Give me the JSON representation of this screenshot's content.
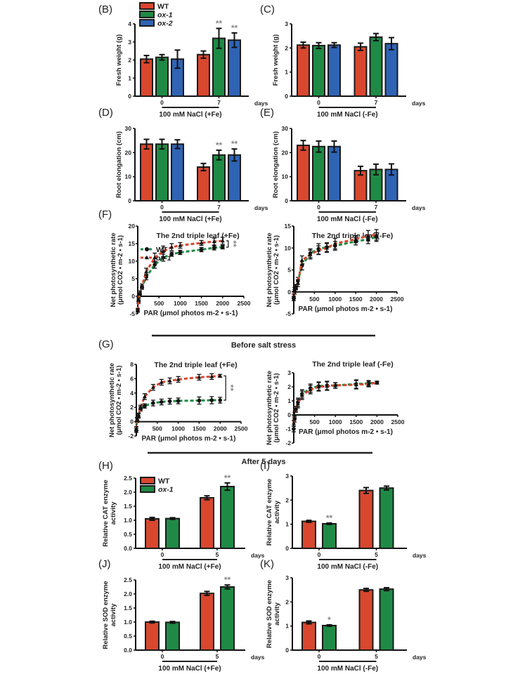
{
  "colors": {
    "WT": "#d9472e",
    "ox-1": "#1f8a45",
    "ox-2": "#2f64b5",
    "axis": "#111111",
    "sig": "#888888"
  },
  "section_labels": {
    "before": "Before salt stress",
    "after": "After 5 days"
  },
  "chart_data": [
    {
      "id": "B",
      "panel_label": "(B)",
      "type": "bar",
      "ylabel": "Fresh weight (g)",
      "ylim": [
        0,
        4
      ],
      "yticks": [
        "0",
        "1",
        "2",
        "3",
        "4"
      ],
      "categories": [
        "0",
        "7"
      ],
      "xunit": "days",
      "condition": "100 mM NaCl (+Fe)",
      "legend": [
        "WT",
        "ox-1",
        "ox-2"
      ],
      "legend_placement": "top-left",
      "series": [
        {
          "name": "WT",
          "values": [
            2.05,
            2.3
          ],
          "errors": [
            0.2,
            0.2
          ],
          "sig": [
            "",
            ""
          ]
        },
        {
          "name": "ox-1",
          "values": [
            2.15,
            3.2
          ],
          "errors": [
            0.15,
            0.55
          ],
          "sig": [
            "",
            "**"
          ]
        },
        {
          "name": "ox-2",
          "values": [
            2.05,
            3.1
          ],
          "errors": [
            0.5,
            0.4
          ],
          "sig": [
            "",
            "**"
          ]
        }
      ]
    },
    {
      "id": "C",
      "panel_label": "(C)",
      "type": "bar",
      "ylabel": "Fresh weight (g)",
      "ylim": [
        0,
        3
      ],
      "yticks": [
        "0",
        "1",
        "2",
        "3"
      ],
      "categories": [
        "0",
        "7"
      ],
      "xunit": "days",
      "condition": "100 mM NaCl  (-Fe)",
      "series": [
        {
          "name": "WT",
          "values": [
            2.12,
            2.05
          ],
          "errors": [
            0.12,
            0.15
          ],
          "sig": [
            "",
            ""
          ]
        },
        {
          "name": "ox-1",
          "values": [
            2.1,
            2.45
          ],
          "errors": [
            0.12,
            0.15
          ],
          "sig": [
            "",
            ""
          ]
        },
        {
          "name": "ox-2",
          "values": [
            2.12,
            2.18
          ],
          "errors": [
            0.1,
            0.25
          ],
          "sig": [
            "",
            ""
          ]
        }
      ]
    },
    {
      "id": "D",
      "panel_label": "(D)",
      "type": "bar",
      "ylabel": "Root elongation (cm)",
      "ylim": [
        0,
        30
      ],
      "yticks": [
        "0",
        "10",
        "20",
        "30"
      ],
      "categories": [
        "0",
        "7"
      ],
      "xunit": "days",
      "condition": "100 mM NaCl (+Fe)",
      "series": [
        {
          "name": "WT",
          "values": [
            23.5,
            14
          ],
          "errors": [
            2,
            1.5
          ],
          "sig": [
            "",
            ""
          ]
        },
        {
          "name": "ox-1",
          "values": [
            23.5,
            19
          ],
          "errors": [
            2,
            2
          ],
          "sig": [
            "",
            "**"
          ]
        },
        {
          "name": "ox-2",
          "values": [
            23.5,
            19
          ],
          "errors": [
            1.8,
            2.5
          ],
          "sig": [
            "",
            "**"
          ]
        }
      ]
    },
    {
      "id": "E",
      "panel_label": "(E)",
      "type": "bar",
      "ylabel": "Root elongation (cm)",
      "ylim": [
        0,
        30
      ],
      "yticks": [
        "0",
        "10",
        "20",
        "30"
      ],
      "categories": [
        "0",
        "7"
      ],
      "xunit": "days",
      "condition": "100 mM NaCl  (-Fe)",
      "series": [
        {
          "name": "WT",
          "values": [
            23,
            12.5
          ],
          "errors": [
            2,
            1.8
          ],
          "sig": [
            "",
            ""
          ]
        },
        {
          "name": "ox-1",
          "values": [
            22.5,
            13
          ],
          "errors": [
            2.3,
            2.2
          ],
          "sig": [
            "",
            ""
          ]
        },
        {
          "name": "ox-2",
          "values": [
            22.5,
            13
          ],
          "errors": [
            2.3,
            2.3
          ],
          "sig": [
            "",
            ""
          ]
        }
      ]
    },
    {
      "id": "F1",
      "panel_label": "(F)",
      "type": "line",
      "title": "The 2nd triple leaf   (+Fe)",
      "ylabel": "Net photosynthetic rate",
      "ylabel2": "(μmol CO2 • m-2 • s-1)",
      "xlabel": "PAR (μmol photos  m-2 • s-1)",
      "xlim": [
        0,
        2500
      ],
      "ylim": [
        -5,
        20
      ],
      "xticks": [
        "500",
        "1000",
        "1500",
        "2000",
        "2500"
      ],
      "yticks": [
        "-5",
        "0",
        "5",
        "10",
        "15",
        "20"
      ],
      "legend": [
        "WT",
        "ox-1"
      ],
      "legend_placement": "top-left",
      "sig": "**",
      "x": [
        0,
        20,
        50,
        100,
        200,
        400,
        600,
        800,
        1000,
        1500,
        1800,
        2000
      ],
      "series": [
        {
          "name": "WT",
          "color_key": "ox-1",
          "values": [
            -4,
            -1.5,
            0.5,
            2.5,
            5.5,
            9,
            11,
            12,
            12.5,
            13.3,
            13.8,
            14
          ],
          "errors": [
            0.5,
            0.5,
            0.5,
            0.5,
            0.8,
            1,
            1,
            0.6,
            0.6,
            0.6,
            0.6,
            0.5
          ]
        },
        {
          "name": "ox-1",
          "color_key": "WT",
          "values": [
            -4,
            -1,
            1,
            3,
            7,
            11,
            12.8,
            14,
            14.5,
            15.2,
            15.6,
            15.8
          ],
          "errors": [
            0.5,
            0.5,
            0.5,
            0.5,
            1,
            1.3,
            1.5,
            1,
            0.8,
            0.7,
            1,
            1
          ]
        }
      ]
    },
    {
      "id": "F2",
      "panel_label": "",
      "type": "line",
      "title": "The 2nd triple leaf   (-Fe)",
      "ylabel": "Net photosynthetic rate",
      "ylabel2": "(μmol CO2 • m-2 • s-1)",
      "xlabel": "PAR (μmol photos  m-2 • s-1)",
      "xlim": [
        0,
        2500
      ],
      "ylim": [
        -5,
        15
      ],
      "xticks": [
        "500",
        "1000",
        "1500",
        "2000",
        "2500"
      ],
      "yticks": [
        "-5",
        "0",
        "5",
        "10",
        "15"
      ],
      "x": [
        0,
        20,
        50,
        100,
        200,
        400,
        600,
        800,
        1000,
        1500,
        1800,
        2000
      ],
      "series": [
        {
          "name": "WT",
          "color_key": "ox-1",
          "values": [
            -1.5,
            0,
            1,
            2.5,
            6,
            8.8,
            9.8,
            10.2,
            10.5,
            11.5,
            12,
            12.5
          ],
          "errors": [
            0.5,
            0.5,
            0.5,
            0.8,
            1,
            1,
            1.2,
            1,
            1,
            0.8,
            1,
            1
          ]
        },
        {
          "name": "ox-1",
          "color_key": "WT",
          "values": [
            -1,
            0.5,
            1.2,
            2,
            7.2,
            8.5,
            9.5,
            10,
            11,
            12,
            12.8,
            13
          ],
          "errors": [
            0.5,
            0.5,
            0.5,
            0.8,
            1,
            1,
            1,
            1,
            1.2,
            0.8,
            1.2,
            1.2
          ]
        }
      ]
    },
    {
      "id": "G1",
      "panel_label": "(G)",
      "type": "line",
      "title": "The 2nd triple leaf   (+Fe)",
      "ylabel": "Net photosynthetic rate",
      "ylabel2": "(μmol CO2 • m-2 • s-1)",
      "xlabel": "PAR (μmol photos  m-2 • s-1)",
      "xlim": [
        0,
        2500
      ],
      "ylim": [
        -2,
        8
      ],
      "xticks": [
        "500",
        "1000",
        "1500",
        "2000",
        "2500"
      ],
      "yticks": [
        "-2",
        "0",
        "2",
        "4",
        "6",
        "8"
      ],
      "sig": "**",
      "x": [
        0,
        20,
        50,
        100,
        200,
        400,
        600,
        800,
        1000,
        1500,
        1800,
        2000
      ],
      "series": [
        {
          "name": "WT",
          "color_key": "ox-1",
          "values": [
            -1.2,
            0.2,
            0.8,
            1.8,
            2.2,
            2.6,
            2.75,
            2.85,
            2.9,
            2.95,
            3,
            3
          ],
          "errors": [
            0.3,
            0.3,
            0.3,
            0.3,
            0.3,
            0.4,
            0.4,
            0.4,
            0.4,
            0.5,
            0.5,
            0.4
          ]
        },
        {
          "name": "ox-1",
          "color_key": "WT",
          "values": [
            -1,
            0.3,
            0.9,
            2,
            3.5,
            4.8,
            5.5,
            5.7,
            5.9,
            6.2,
            6.3,
            6.4
          ],
          "errors": [
            0.3,
            0.3,
            0.3,
            0.3,
            0.4,
            0.4,
            0.4,
            0.4,
            0.4,
            0.4,
            0.4,
            0.2
          ]
        }
      ]
    },
    {
      "id": "G2",
      "panel_label": "",
      "type": "line",
      "title": "The 2nd triple leaf   (-Fe)",
      "ylabel": "Net photosynthetic rate",
      "ylabel2": "(μmol CO2 • m-2 • s-1)",
      "xlabel": "PAR (μmol photos  m-2 • s-1)",
      "xlim": [
        0,
        2500
      ],
      "ylim": [
        -2,
        3
      ],
      "xticks": [
        "500",
        "1000",
        "1500",
        "2000",
        "2500"
      ],
      "yticks": [
        "-2",
        "-1",
        "0",
        "1",
        "2",
        "3"
      ],
      "x": [
        0,
        20,
        50,
        100,
        200,
        400,
        600,
        800,
        1000,
        1500,
        1800,
        2000
      ],
      "series": [
        {
          "name": "WT",
          "color_key": "ox-1",
          "values": [
            -1,
            -0.3,
            0.4,
            0.9,
            1.5,
            1.9,
            2.05,
            2.1,
            2.1,
            2.2,
            2.25,
            2.3
          ],
          "errors": [
            0.2,
            0.2,
            0.2,
            0.3,
            0.3,
            0.3,
            0.3,
            0.3,
            0.2,
            0.3,
            0.2,
            0.1
          ]
        },
        {
          "name": "ox-1",
          "color_key": "WT",
          "values": [
            -0.6,
            0,
            0.4,
            0.8,
            1.4,
            1.8,
            2,
            2.05,
            2.1,
            2.15,
            2.2,
            2.3
          ],
          "errors": [
            0.2,
            0.2,
            0.2,
            0.3,
            0.3,
            0.3,
            0.3,
            0.3,
            0.2,
            0.3,
            0.2,
            0.1
          ]
        }
      ]
    },
    {
      "id": "H",
      "panel_label": "(H)",
      "type": "bar",
      "ylabel": "Relative CAT enzyme",
      "ylabel2": "activity",
      "ylim": [
        0,
        2.5
      ],
      "yticks": [
        "0.0",
        "0.5",
        "1.0",
        "1.5",
        "2.0",
        "2.5"
      ],
      "categories": [
        "0",
        "5"
      ],
      "xunit": "days",
      "condition": "100 mM NaCl (+Fe)",
      "legend": [
        "WT",
        "ox-1"
      ],
      "legend_placement": "top-left",
      "series": [
        {
          "name": "WT",
          "values": [
            1.05,
            1.8
          ],
          "errors": [
            0.05,
            0.07
          ],
          "sig": [
            "",
            ""
          ]
        },
        {
          "name": "ox-1",
          "values": [
            1.06,
            2.2
          ],
          "errors": [
            0.03,
            0.13
          ],
          "sig": [
            "",
            "**"
          ]
        }
      ]
    },
    {
      "id": "I",
      "panel_label": "(I)",
      "type": "bar",
      "ylabel": "Relative CAT enzyme",
      "ylabel2": "activity",
      "ylim": [
        0,
        3
      ],
      "yticks": [
        "0",
        "1",
        "2",
        "3"
      ],
      "categories": [
        "0",
        "5"
      ],
      "xunit": "days",
      "condition": "100 mM NaCl (-Fe)",
      "series": [
        {
          "name": "WT",
          "values": [
            1.12,
            2.4
          ],
          "errors": [
            0.04,
            0.12
          ],
          "sig": [
            "",
            ""
          ]
        },
        {
          "name": "ox-1",
          "values": [
            1.02,
            2.5
          ],
          "errors": [
            0.03,
            0.08
          ],
          "sig": [
            "**",
            ""
          ]
        }
      ]
    },
    {
      "id": "J",
      "panel_label": "(J)",
      "type": "bar",
      "ylabel": "Relative SOD enzyme",
      "ylabel2": "activity",
      "ylim": [
        0,
        2.5
      ],
      "yticks": [
        "0.0",
        "0.5",
        "1.0",
        "1.5",
        "2.0",
        "2.5"
      ],
      "categories": [
        "0",
        "5"
      ],
      "xunit": "days",
      "condition": "100 mM NaCl (+Fe)",
      "series": [
        {
          "name": "WT",
          "values": [
            1.0,
            2.02
          ],
          "errors": [
            0.03,
            0.07
          ],
          "sig": [
            "",
            ""
          ]
        },
        {
          "name": "ox-1",
          "values": [
            0.99,
            2.25
          ],
          "errors": [
            0.03,
            0.07
          ],
          "sig": [
            "",
            "**"
          ]
        }
      ]
    },
    {
      "id": "K",
      "panel_label": "(K)",
      "type": "bar",
      "ylabel": "Relative SOD enzyme",
      "ylabel2": "activity",
      "ylim": [
        0,
        3
      ],
      "yticks": [
        "0",
        "1",
        "2",
        "3"
      ],
      "categories": [
        "0",
        "5"
      ],
      "xunit": "days",
      "condition": "100 mM NaCl (-Fe)",
      "series": [
        {
          "name": "WT",
          "values": [
            1.15,
            2.5
          ],
          "errors": [
            0.06,
            0.06
          ],
          "sig": [
            "",
            ""
          ]
        },
        {
          "name": "ox-1",
          "values": [
            1.02,
            2.53
          ],
          "errors": [
            0.03,
            0.06
          ],
          "sig": [
            "*",
            ""
          ]
        }
      ]
    }
  ]
}
